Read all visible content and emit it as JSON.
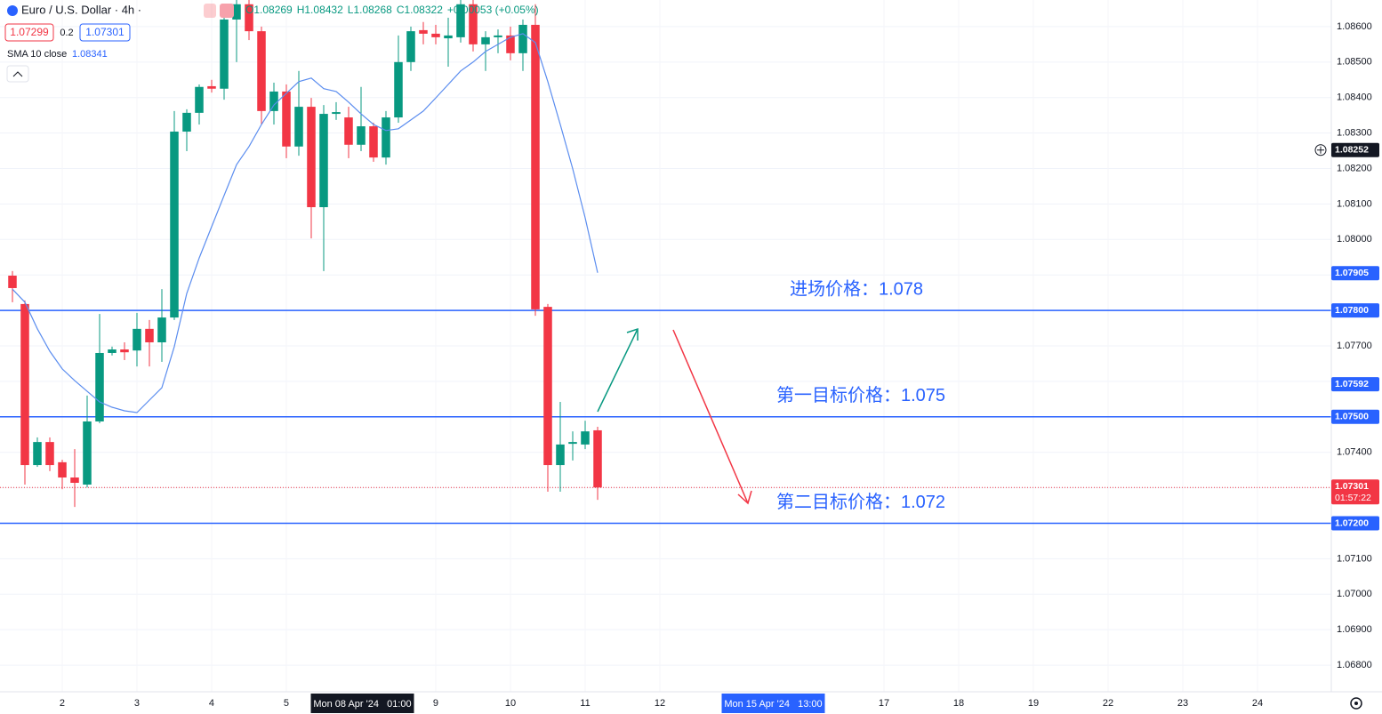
{
  "chart_data": {
    "type": "candlestick",
    "title": "Euro / U.S. Dollar · 4h ·",
    "ohlc_readout": [
      "O1.08269",
      "H1.08432",
      "L1.08268",
      "C1.08322",
      "+0.00053 (+0.05%)"
    ],
    "bid": "1.07299",
    "spread": "0.2",
    "ask": "1.07301",
    "up_color": "#089981",
    "down_color": "#f23645",
    "x": [
      -0.6667,
      -0.5,
      -0.3333,
      -0.1667,
      0,
      0.1667,
      0.3333,
      0.5,
      0.6667,
      0.8333,
      1,
      1.1667,
      1.3333,
      1.5,
      1.6667,
      1.8333,
      2,
      2.1667,
      2.3333,
      2.5,
      2.6667,
      2.8333,
      3,
      3.1667,
      3.3333,
      3.5,
      3.6667,
      3.8333,
      4,
      4.1667,
      4.3333,
      4.5,
      4.6667,
      4.8333,
      5,
      5.1667,
      5.3333,
      5.5,
      5.6667,
      5.8333,
      6,
      6.1667,
      6.3333,
      6.5,
      6.6667,
      6.8333,
      7,
      7.1667
    ],
    "open": [
      1.07898,
      1.07818,
      1.07364,
      1.07429,
      1.07372,
      1.07329,
      1.07309,
      1.07487,
      1.0768,
      1.0769,
      1.07687,
      1.07748,
      1.0771,
      1.0778,
      1.08304,
      1.08357,
      1.08432,
      1.08425,
      1.0862,
      1.08663,
      1.08587,
      1.08362,
      1.08417,
      1.08262,
      1.08374,
      1.08091,
      1.08354,
      1.08344,
      1.08267,
      1.08319,
      1.08231,
      1.08344,
      1.085,
      1.0859,
      1.0858,
      1.08567,
      1.0857,
      1.08663,
      1.0855,
      1.0857,
      1.08575,
      1.08525,
      1.08605,
      1.0781,
      1.07364,
      1.07424,
      1.07422,
      1.07462
    ],
    "high": [
      1.07911,
      1.07828,
      1.07442,
      1.07442,
      1.07379,
      1.07409,
      1.0756,
      1.0779,
      1.07698,
      1.0771,
      1.07793,
      1.07773,
      1.0786,
      1.08362,
      1.08367,
      1.08437,
      1.0845,
      1.0865,
      1.08675,
      1.08675,
      1.086,
      1.08442,
      1.08437,
      1.08475,
      1.08399,
      1.08379,
      1.08387,
      1.08374,
      1.0843,
      1.08329,
      1.08362,
      1.08575,
      1.086,
      1.08613,
      1.08605,
      1.08625,
      1.08675,
      1.08675,
      1.08587,
      1.08592,
      1.086,
      1.0862,
      1.08663,
      1.07818,
      1.07542,
      1.07459,
      1.07489,
      1.07472
    ],
    "low": [
      1.07823,
      1.07309,
      1.07359,
      1.07347,
      1.07296,
      1.07246,
      1.07301,
      1.07482,
      1.07673,
      1.0766,
      1.07642,
      1.07642,
      1.07655,
      1.07773,
      1.08249,
      1.08324,
      1.08414,
      1.08394,
      1.085,
      1.08562,
      1.08324,
      1.08324,
      1.08229,
      1.08236,
      1.08003,
      1.07911,
      1.08337,
      1.08229,
      1.08249,
      1.08219,
      1.08211,
      1.08329,
      1.08475,
      1.0855,
      1.0855,
      1.08487,
      1.08555,
      1.0853,
      1.08475,
      1.08525,
      1.08505,
      1.08475,
      1.07785,
      1.07289,
      1.07289,
      1.07377,
      1.07409,
      1.07266
    ],
    "close": [
      1.07863,
      1.07364,
      1.07429,
      1.07364,
      1.07329,
      1.07314,
      1.07487,
      1.0768,
      1.0769,
      1.07682,
      1.07748,
      1.0771,
      1.0778,
      1.08304,
      1.08357,
      1.0843,
      1.08425,
      1.0862,
      1.08663,
      1.08587,
      1.08362,
      1.08417,
      1.08262,
      1.08374,
      1.08091,
      1.08354,
      1.08359,
      1.08267,
      1.08319,
      1.08231,
      1.08344,
      1.085,
      1.08587,
      1.0858,
      1.0857,
      1.08575,
      1.08663,
      1.0855,
      1.0857,
      1.08575,
      1.08525,
      1.08605,
      1.07803,
      1.07364,
      1.07422,
      1.07429,
      1.07459,
      1.07301
    ],
    "sma": {
      "name": "SMA 10 close",
      "last": 1.08341,
      "color": "#5b8def",
      "values": [
        1.0786,
        1.07823,
        1.07748,
        1.07685,
        1.07635,
        1.07602,
        1.07572,
        1.07542,
        1.07527,
        1.07517,
        1.07512,
        1.07547,
        1.07582,
        1.07698,
        1.07848,
        1.07948,
        1.08036,
        1.08124,
        1.08211,
        1.08262,
        1.08324,
        1.08379,
        1.08412,
        1.08445,
        1.08455,
        1.08425,
        1.08417,
        1.08387,
        1.08354,
        1.08324,
        1.08307,
        1.08312,
        1.08337,
        1.08362,
        1.08399,
        1.08437,
        1.08475,
        1.085,
        1.0853,
        1.0855,
        1.0857,
        1.0858,
        1.08555,
        1.08445,
        1.08324,
        1.08199,
        1.08061,
        1.07906
      ]
    },
    "hlines": [
      {
        "value": 1.078,
        "label": "进场价格：1.078",
        "color": "#2962ff"
      },
      {
        "value": 1.075,
        "label": "第一目标价格：1.075",
        "color": "#2962ff"
      },
      {
        "value": 1.072,
        "label": "第二目标价格：1.072",
        "color": "#2962ff"
      }
    ],
    "last_price": {
      "value": 1.07301,
      "label": "1.07301",
      "countdown": "01:57:22",
      "color": "#f23645"
    },
    "price_labels": [
      {
        "value": 1.08252,
        "label": "1.08252",
        "color": "#131722"
      },
      {
        "value": 1.07905,
        "label": "1.07905",
        "color": "#2962ff"
      },
      {
        "value": 1.078,
        "label": "1.07800",
        "color": "#2962ff"
      },
      {
        "value": 1.07592,
        "label": "1.07592",
        "color": "#2962ff"
      },
      {
        "value": 1.075,
        "label": "1.07500",
        "color": "#2962ff"
      },
      {
        "value": 1.072,
        "label": "1.07200",
        "color": "#2962ff"
      }
    ],
    "ylim": [
      1.06725,
      1.08675
    ],
    "yticks": [
      {
        "value": 1.068,
        "label": "1.06800"
      },
      {
        "value": 1.069,
        "label": "1.06900"
      },
      {
        "value": 1.07,
        "label": "1.07000"
      },
      {
        "value": 1.071,
        "label": "1.07100"
      },
      {
        "value": 1.072,
        "label": "1.07200"
      },
      {
        "value": 1.073,
        "label": "1.07300"
      },
      {
        "value": 1.074,
        "label": "1.07400"
      },
      {
        "value": 1.075,
        "label": "1.07500"
      },
      {
        "value": 1.076,
        "label": "1.07600"
      },
      {
        "value": 1.077,
        "label": "1.07700"
      },
      {
        "value": 1.078,
        "label": "1.07800"
      },
      {
        "value": 1.079,
        "label": "1.07900"
      },
      {
        "value": 1.08,
        "label": "1.08000"
      },
      {
        "value": 1.081,
        "label": "1.08100"
      },
      {
        "value": 1.082,
        "label": "1.08200"
      },
      {
        "value": 1.083,
        "label": "1.08300"
      },
      {
        "value": 1.084,
        "label": "1.08400"
      },
      {
        "value": 1.085,
        "label": "1.08500"
      },
      {
        "value": 1.086,
        "label": "1.08600"
      }
    ],
    "xlim": [
      -0.8333,
      16.9881
    ],
    "xticks": [
      {
        "value": 0,
        "label": "2"
      },
      {
        "value": 1,
        "label": "3"
      },
      {
        "value": 2,
        "label": "4"
      },
      {
        "value": 3,
        "label": "5"
      },
      {
        "value": 5,
        "label": "9"
      },
      {
        "value": 6,
        "label": "10"
      },
      {
        "value": 7,
        "label": "11"
      },
      {
        "value": 8,
        "label": "12"
      },
      {
        "value": 11,
        "label": "17"
      },
      {
        "value": 12,
        "label": "18"
      },
      {
        "value": 13,
        "label": "19"
      },
      {
        "value": 14,
        "label": "22"
      },
      {
        "value": 15,
        "label": "23"
      },
      {
        "value": 16,
        "label": "24"
      }
    ],
    "xmarkers": [
      {
        "value": 4.0417,
        "label": "Mon 08 Apr '24   01:00",
        "color": "#131722"
      },
      {
        "value": 9.5417,
        "label": "Mon 15 Apr '24   13:00",
        "color": "#2962ff"
      }
    ],
    "grid": true
  }
}
